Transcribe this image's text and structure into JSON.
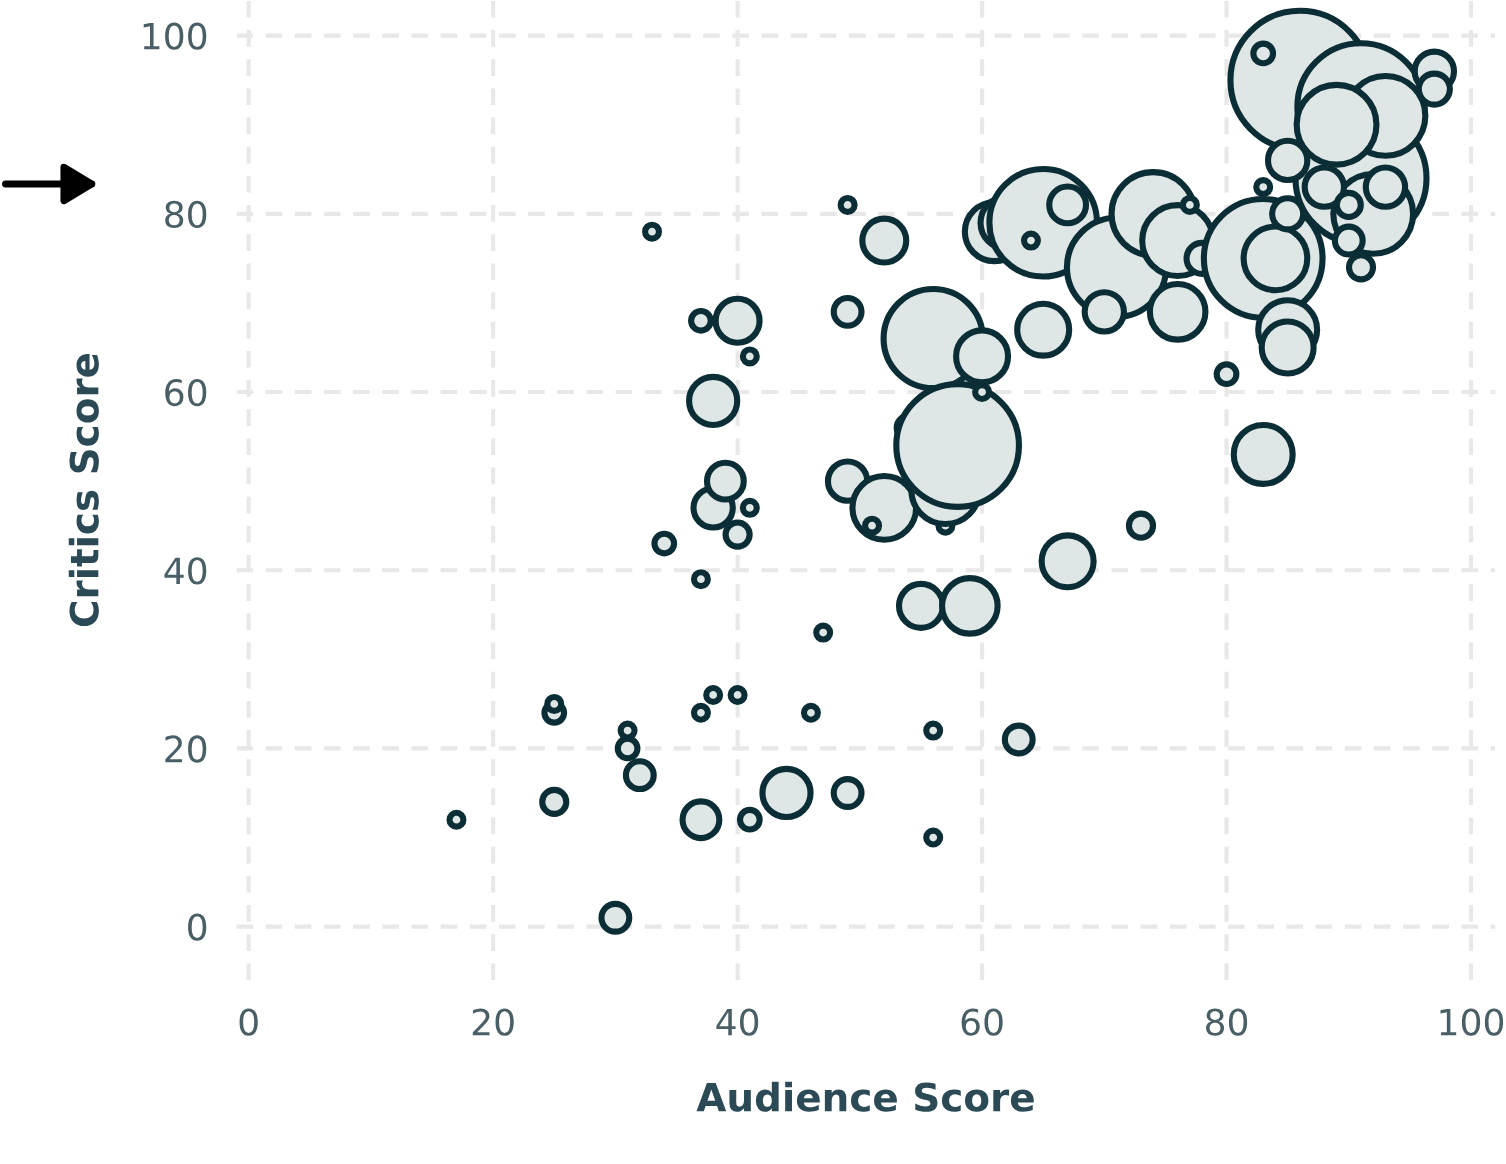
{
  "chart_data": {
    "type": "bubble",
    "xlabel": "Audience Score",
    "ylabel": "Critics Score",
    "xlim": [
      -1,
      102
    ],
    "ylim": [
      -6,
      104
    ],
    "xticks": [
      0,
      20,
      40,
      60,
      80,
      100
    ],
    "yticks": [
      0,
      20,
      40,
      60,
      80,
      100
    ],
    "grid": true,
    "marker": "circle",
    "series": [
      {
        "color": "#dfe6e6",
        "x": [
          17,
          25,
          25,
          25,
          30,
          31,
          31,
          32,
          33,
          34,
          37,
          37,
          37,
          40,
          41,
          38,
          38,
          40,
          39,
          37,
          41,
          38,
          41,
          40,
          44,
          46,
          47,
          49,
          49,
          49,
          49,
          52,
          51,
          52,
          54,
          56,
          55,
          59,
          56,
          56,
          57,
          57,
          58,
          60,
          60,
          61,
          62,
          63,
          65,
          65,
          67,
          64,
          71,
          70,
          74,
          76,
          77,
          78,
          76,
          83,
          84,
          85,
          85,
          80,
          83,
          83,
          85,
          86,
          83,
          91,
          91,
          92,
          97,
          97,
          85,
          88,
          90,
          90,
          91,
          93,
          93,
          89,
          73,
          67
        ],
        "values": [
          12,
          14,
          24,
          25,
          1,
          22,
          20,
          17,
          78,
          43,
          24,
          39,
          68,
          68,
          64,
          59,
          47,
          44,
          50,
          12,
          12,
          26,
          47,
          26,
          15,
          24,
          33,
          15,
          69,
          81,
          50,
          47,
          45,
          77,
          56,
          66,
          36,
          36,
          10,
          22,
          45,
          49,
          54,
          60,
          64,
          78,
          79,
          21,
          67,
          79,
          81,
          77,
          74,
          69,
          80,
          77,
          81,
          75,
          69,
          75,
          75,
          67,
          65,
          62,
          53,
          83,
          80,
          95,
          98,
          92,
          84,
          80,
          96,
          94,
          86,
          83,
          77,
          81,
          74,
          83,
          91,
          90,
          45,
          41
        ],
        "sizes": [
          0.01,
          0.03,
          0.02,
          0.01,
          0.04,
          0.01,
          0.02,
          0.04,
          0.01,
          0.02,
          0.01,
          0.01,
          0.02,
          0.1,
          0.01,
          0.12,
          0.08,
          0.03,
          0.07,
          0.07,
          0.02,
          0.01,
          0.01,
          0.01,
          0.12,
          0.01,
          0.01,
          0.04,
          0.04,
          0.01,
          0.08,
          0.21,
          0.01,
          0.1,
          0.03,
          0.51,
          0.1,
          0.16,
          0.01,
          0.01,
          0.01,
          0.24,
          0.78,
          0.01,
          0.14,
          0.18,
          0.14,
          0.04,
          0.14,
          0.6,
          0.07,
          0.01,
          0.51,
          0.08,
          0.36,
          0.26,
          0.01,
          0.05,
          0.16,
          0.73,
          0.21,
          0.18,
          0.14,
          0.02,
          0.18,
          0.01,
          0.05,
          1,
          0.02,
          0.84,
          0.89,
          0.33,
          0.08,
          0.05,
          0.08,
          0.08,
          0.04,
          0.03,
          0.03,
          0.08,
          0.33,
          0.33,
          0.03,
          0.14
        ]
      }
    ]
  }
}
